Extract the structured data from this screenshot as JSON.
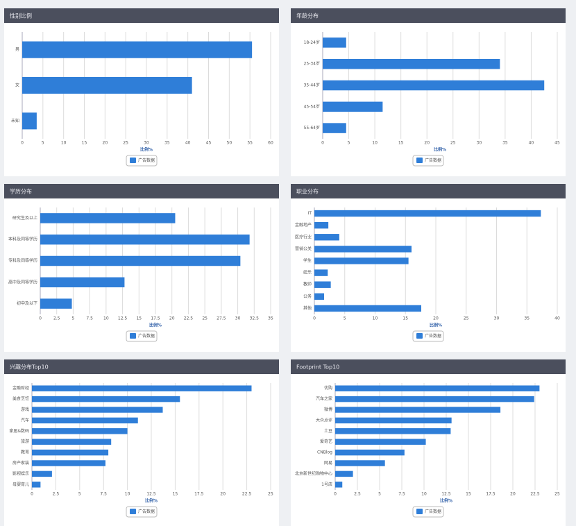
{
  "chart_data": [
    {
      "type": "bar",
      "orientation": "horizontal",
      "title": "性别比例",
      "categories": [
        "男",
        "女",
        "未知"
      ],
      "series": [
        {
          "name": "广告数据",
          "color": "#2f7ed8",
          "values": [
            55.5,
            41,
            3.5
          ]
        }
      ],
      "xlabel": "比例%",
      "xlim": [
        0,
        60
      ],
      "xticks": [
        0,
        5,
        10,
        15,
        20,
        25,
        30,
        35,
        40,
        45,
        50,
        55,
        60
      ],
      "grid": true
    },
    {
      "type": "bar",
      "orientation": "horizontal",
      "title": "年龄分布",
      "categories": [
        "18-24岁",
        "25-34岁",
        "35-44岁",
        "45-54岁",
        "55-64岁"
      ],
      "series": [
        {
          "name": "广告数据",
          "color": "#2f7ed8",
          "values": [
            4.5,
            34,
            42.5,
            11.5,
            4.5
          ]
        }
      ],
      "xlabel": "比例%",
      "xlim": [
        0,
        45
      ],
      "xticks": [
        0,
        5,
        10,
        15,
        20,
        25,
        30,
        35,
        40,
        45
      ],
      "grid": true
    },
    {
      "type": "bar",
      "orientation": "horizontal",
      "title": "学历分布",
      "categories": [
        "研究生及以上",
        "本科及同等学历",
        "专科及同等学历",
        "高中及同等学历",
        "初中及以下"
      ],
      "series": [
        {
          "name": "广告数据",
          "color": "#2f7ed8",
          "values": [
            20.5,
            31.8,
            30.4,
            12.8,
            4.8
          ]
        }
      ],
      "xlabel": "比例%",
      "xlim": [
        0,
        35
      ],
      "xticks": [
        0,
        2.5,
        5,
        7.5,
        10,
        12.5,
        15,
        17.5,
        20,
        22.5,
        25,
        27.5,
        30,
        32.5,
        35
      ],
      "grid": true
    },
    {
      "type": "bar",
      "orientation": "horizontal",
      "title": "职业分布",
      "categories": [
        "IT",
        "金融地产",
        "医疗行业",
        "营销公关",
        "学生",
        "娱乐",
        "教师",
        "公务",
        "其他"
      ],
      "series": [
        {
          "name": "广告数据",
          "color": "#2f7ed8",
          "values": [
            37.3,
            2.3,
            4.1,
            16,
            15.5,
            2.2,
            2.7,
            1.6,
            17.6
          ]
        }
      ],
      "xlabel": "比例%",
      "xlim": [
        0,
        40
      ],
      "xticks": [
        0,
        5,
        10,
        15,
        20,
        25,
        30,
        35,
        40
      ],
      "grid": true
    },
    {
      "type": "bar",
      "orientation": "horizontal",
      "title": "兴趣分布Top10",
      "categories": [
        "金融财经",
        "美食烹饪",
        "游戏",
        "汽车",
        "家居&数码",
        "旅游",
        "教育",
        "房产家装",
        "影视娱乐",
        "母婴育儿"
      ],
      "series": [
        {
          "name": "广告数据",
          "color": "#2f7ed8",
          "values": [
            23,
            15.5,
            13.7,
            11.1,
            10,
            8.3,
            8,
            7.7,
            2.1,
            0.9
          ]
        }
      ],
      "xlabel": "比例%",
      "xlim": [
        0,
        25
      ],
      "xticks": [
        0,
        2.5,
        5,
        7.5,
        10,
        12.5,
        15,
        17.5,
        20,
        22.5,
        25
      ],
      "grid": true
    },
    {
      "type": "bar",
      "orientation": "horizontal",
      "title": "Footprint Top10",
      "categories": [
        "优购",
        "汽车之家",
        "微博",
        "大众点评",
        "土豆",
        "爱奇艺",
        "CNBlog",
        "网易",
        "北京新世纪购物中心",
        "1号店"
      ],
      "series": [
        {
          "name": "广告数据",
          "color": "#2f7ed8",
          "values": [
            23,
            22.4,
            18.6,
            13.1,
            13,
            10.2,
            7.8,
            5.6,
            2,
            0.8
          ]
        }
      ],
      "xlabel": "比例%",
      "xlim": [
        0,
        25
      ],
      "xticks": [
        0,
        2.5,
        5,
        7.5,
        10,
        12.5,
        15,
        17.5,
        20,
        22.5,
        25
      ],
      "grid": true
    }
  ]
}
